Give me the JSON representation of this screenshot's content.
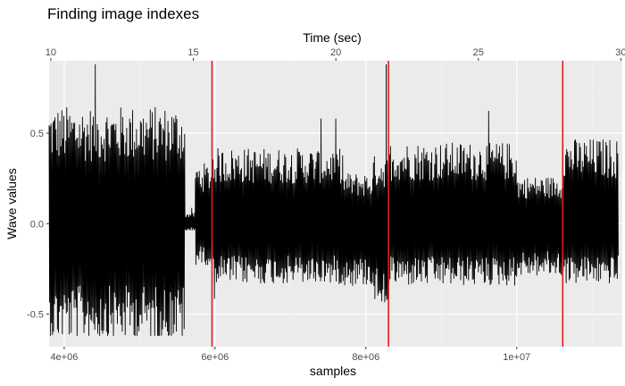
{
  "chart_data": {
    "type": "line",
    "title": "Finding image indexes",
    "xlabel": "samples",
    "ylabel": "Wave values",
    "x2label": "Time (sec)",
    "xlim": [
      3800000,
      11400000
    ],
    "ylim": [
      -0.68,
      0.9
    ],
    "x_ticks": [
      4000000,
      6000000,
      8000000,
      10000000
    ],
    "x_tick_labels": [
      "4e+06",
      "6e+06",
      "8e+06",
      "1e+07"
    ],
    "y_ticks": [
      -0.5,
      0.0,
      0.5
    ],
    "y_tick_labels": [
      "-0.5",
      "0.0",
      "0.5"
    ],
    "x2_ticks": [
      10,
      15,
      20,
      25,
      30
    ],
    "x2_tick_labels": [
      "10",
      "15",
      "20",
      "25",
      "30"
    ],
    "x2lim": [
      9.94,
      30.05
    ],
    "grid": true,
    "legend": "none",
    "vertical_lines": [
      5960000,
      8300000,
      10610000
    ],
    "series": [
      {
        "color": "#000000",
        "segments": [
          {
            "x_start": 3800000,
            "x_end": 5600000,
            "upper": 0.62,
            "lower": -0.62
          },
          {
            "x_start": 5600000,
            "x_end": 5740000,
            "upper": 0.06,
            "lower": -0.04
          },
          {
            "x_start": 5740000,
            "x_end": 5960000,
            "upper": 0.32,
            "lower": -0.22
          },
          {
            "x_start": 5960000,
            "x_end": 7700000,
            "upper": 0.4,
            "lower": -0.32
          },
          {
            "x_start": 7700000,
            "x_end": 8100000,
            "upper": 0.27,
            "lower": -0.33
          },
          {
            "x_start": 8100000,
            "x_end": 8300000,
            "upper": 0.36,
            "lower": -0.42
          },
          {
            "x_start": 8300000,
            "x_end": 10000000,
            "upper": 0.43,
            "lower": -0.33
          },
          {
            "x_start": 10000000,
            "x_end": 10610000,
            "upper": 0.25,
            "lower": -0.28
          },
          {
            "x_start": 10610000,
            "x_end": 11350000,
            "upper": 0.45,
            "lower": -0.32
          }
        ],
        "peak_max": 0.88,
        "peak_min": -0.62
      }
    ]
  },
  "colors": {
    "panel": "#ebebeb",
    "grid_major": "#ffffff",
    "grid_minor": "#f5f5f5",
    "vline": "#e31a1c",
    "wave": "#000000"
  }
}
